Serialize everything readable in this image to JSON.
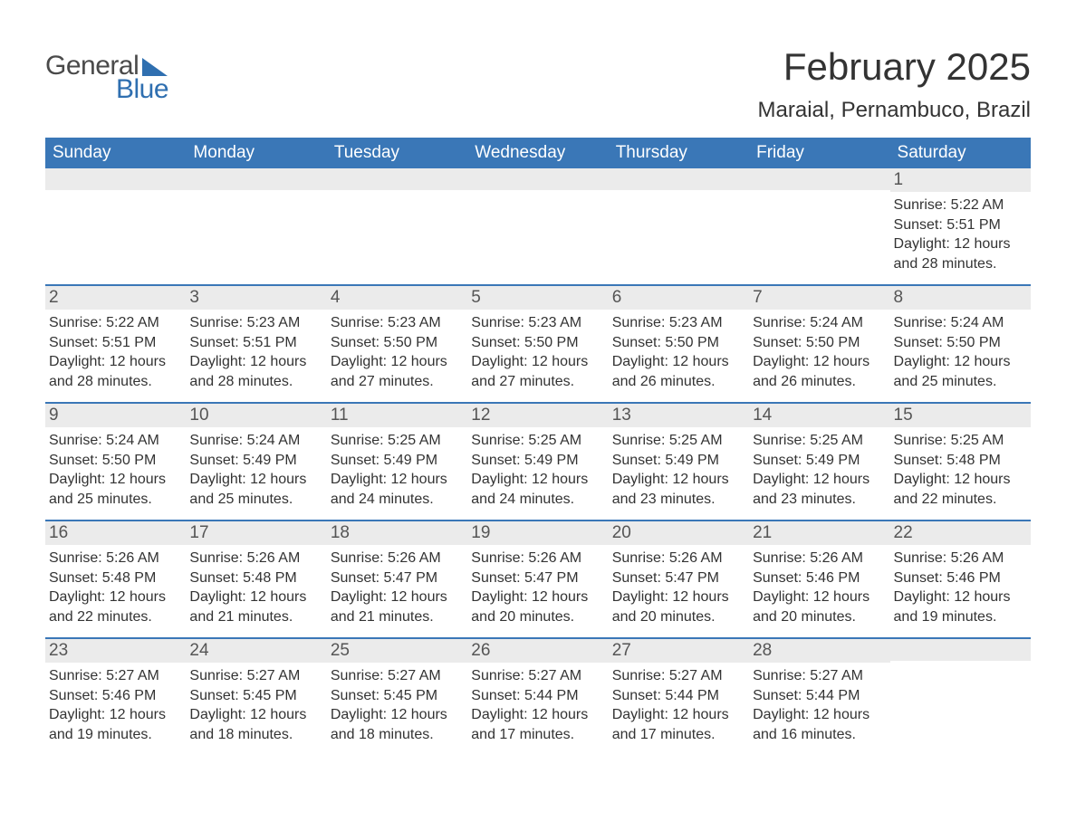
{
  "logo": {
    "general": "General",
    "blue": "Blue"
  },
  "title": "February 2025",
  "location": "Maraial, Pernambuco, Brazil",
  "colors": {
    "brand_blue": "#3a77b7",
    "logo_blue": "#2f6fb0",
    "text": "#333333",
    "daynum_bg": "#ebebeb",
    "background": "#ffffff"
  },
  "weekdays": [
    "Sunday",
    "Monday",
    "Tuesday",
    "Wednesday",
    "Thursday",
    "Friday",
    "Saturday"
  ],
  "labels": {
    "sunrise": "Sunrise: ",
    "sunset": "Sunset: ",
    "daylight": "Daylight: "
  },
  "weeks": [
    [
      null,
      null,
      null,
      null,
      null,
      null,
      {
        "n": "1",
        "sr": "5:22 AM",
        "ss": "5:51 PM",
        "dl": "12 hours and 28 minutes."
      }
    ],
    [
      {
        "n": "2",
        "sr": "5:22 AM",
        "ss": "5:51 PM",
        "dl": "12 hours and 28 minutes."
      },
      {
        "n": "3",
        "sr": "5:23 AM",
        "ss": "5:51 PM",
        "dl": "12 hours and 28 minutes."
      },
      {
        "n": "4",
        "sr": "5:23 AM",
        "ss": "5:50 PM",
        "dl": "12 hours and 27 minutes."
      },
      {
        "n": "5",
        "sr": "5:23 AM",
        "ss": "5:50 PM",
        "dl": "12 hours and 27 minutes."
      },
      {
        "n": "6",
        "sr": "5:23 AM",
        "ss": "5:50 PM",
        "dl": "12 hours and 26 minutes."
      },
      {
        "n": "7",
        "sr": "5:24 AM",
        "ss": "5:50 PM",
        "dl": "12 hours and 26 minutes."
      },
      {
        "n": "8",
        "sr": "5:24 AM",
        "ss": "5:50 PM",
        "dl": "12 hours and 25 minutes."
      }
    ],
    [
      {
        "n": "9",
        "sr": "5:24 AM",
        "ss": "5:50 PM",
        "dl": "12 hours and 25 minutes."
      },
      {
        "n": "10",
        "sr": "5:24 AM",
        "ss": "5:49 PM",
        "dl": "12 hours and 25 minutes."
      },
      {
        "n": "11",
        "sr": "5:25 AM",
        "ss": "5:49 PM",
        "dl": "12 hours and 24 minutes."
      },
      {
        "n": "12",
        "sr": "5:25 AM",
        "ss": "5:49 PM",
        "dl": "12 hours and 24 minutes."
      },
      {
        "n": "13",
        "sr": "5:25 AM",
        "ss": "5:49 PM",
        "dl": "12 hours and 23 minutes."
      },
      {
        "n": "14",
        "sr": "5:25 AM",
        "ss": "5:49 PM",
        "dl": "12 hours and 23 minutes."
      },
      {
        "n": "15",
        "sr": "5:25 AM",
        "ss": "5:48 PM",
        "dl": "12 hours and 22 minutes."
      }
    ],
    [
      {
        "n": "16",
        "sr": "5:26 AM",
        "ss": "5:48 PM",
        "dl": "12 hours and 22 minutes."
      },
      {
        "n": "17",
        "sr": "5:26 AM",
        "ss": "5:48 PM",
        "dl": "12 hours and 21 minutes."
      },
      {
        "n": "18",
        "sr": "5:26 AM",
        "ss": "5:47 PM",
        "dl": "12 hours and 21 minutes."
      },
      {
        "n": "19",
        "sr": "5:26 AM",
        "ss": "5:47 PM",
        "dl": "12 hours and 20 minutes."
      },
      {
        "n": "20",
        "sr": "5:26 AM",
        "ss": "5:47 PM",
        "dl": "12 hours and 20 minutes."
      },
      {
        "n": "21",
        "sr": "5:26 AM",
        "ss": "5:46 PM",
        "dl": "12 hours and 20 minutes."
      },
      {
        "n": "22",
        "sr": "5:26 AM",
        "ss": "5:46 PM",
        "dl": "12 hours and 19 minutes."
      }
    ],
    [
      {
        "n": "23",
        "sr": "5:27 AM",
        "ss": "5:46 PM",
        "dl": "12 hours and 19 minutes."
      },
      {
        "n": "24",
        "sr": "5:27 AM",
        "ss": "5:45 PM",
        "dl": "12 hours and 18 minutes."
      },
      {
        "n": "25",
        "sr": "5:27 AM",
        "ss": "5:45 PM",
        "dl": "12 hours and 18 minutes."
      },
      {
        "n": "26",
        "sr": "5:27 AM",
        "ss": "5:44 PM",
        "dl": "12 hours and 17 minutes."
      },
      {
        "n": "27",
        "sr": "5:27 AM",
        "ss": "5:44 PM",
        "dl": "12 hours and 17 minutes."
      },
      {
        "n": "28",
        "sr": "5:27 AM",
        "ss": "5:44 PM",
        "dl": "12 hours and 16 minutes."
      },
      null
    ]
  ]
}
